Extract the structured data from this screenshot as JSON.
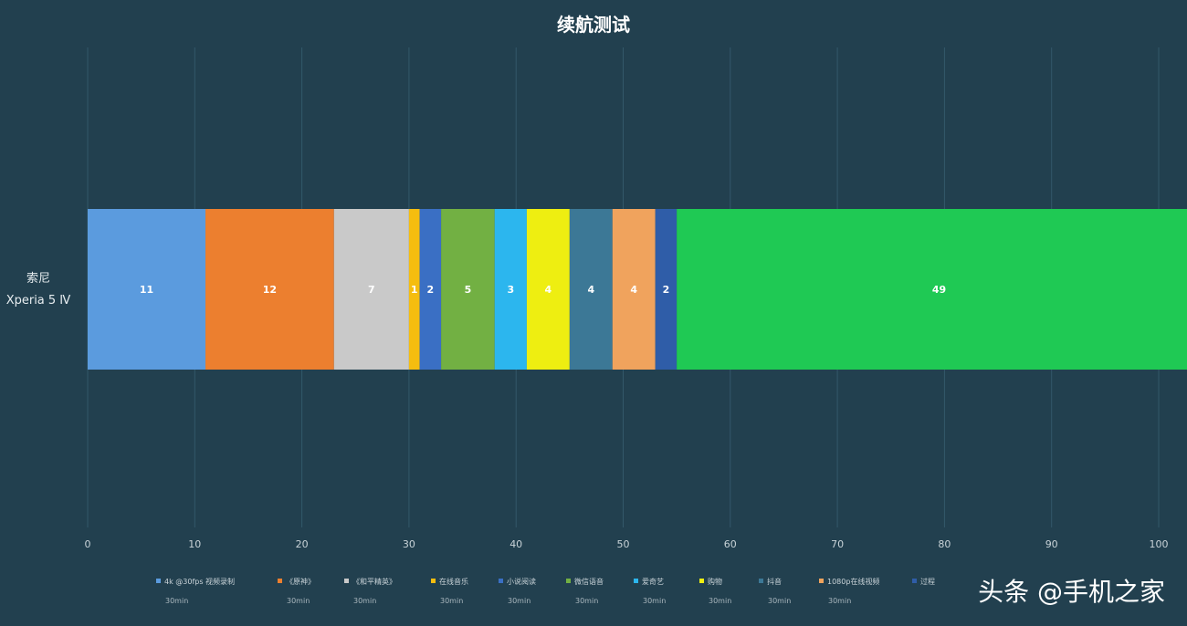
{
  "chart_data": {
    "type": "bar",
    "orientation": "horizontal",
    "stacked": true,
    "title": "续航测试",
    "categories": [
      "索尼",
      "Xperia 5 Ⅳ"
    ],
    "xlim": [
      0,
      100
    ],
    "x_ticks": [
      "0",
      "10",
      "20",
      "30",
      "40",
      "50",
      "60",
      "70",
      "80",
      "90",
      "100"
    ],
    "grid": true,
    "legend_position": "bottom",
    "series": [
      {
        "name": "4k @30fps 视频录制",
        "sub": "30min",
        "value": 11,
        "color": "#5b9bde",
        "label": "11"
      },
      {
        "name": "《原神》",
        "sub": "30min",
        "value": 12,
        "color": "#ec7f2f",
        "label": "12"
      },
      {
        "name": "《和平精英》",
        "sub": "30min",
        "value": 7,
        "color": "#c9c9c9",
        "label": "7"
      },
      {
        "name": "在线音乐",
        "sub": "30min",
        "value": 1,
        "color": "#f5bd0f",
        "label": "1"
      },
      {
        "name": "小说阅读",
        "sub": "30min",
        "value": 2,
        "color": "#3a6fc4",
        "label": "2"
      },
      {
        "name": "微信语音",
        "sub": "30min",
        "value": 5,
        "color": "#72b043",
        "label": "5"
      },
      {
        "name": "爱奇艺",
        "sub": "30min",
        "value": 3,
        "color": "#2cb6ee",
        "label": "3"
      },
      {
        "name": "购物",
        "sub": "30min",
        "value": 4,
        "color": "#eeee11",
        "label": "4"
      },
      {
        "name": "抖音",
        "sub": "30min",
        "value": 4,
        "color": "#3c7896",
        "label": "4"
      },
      {
        "name": "1080p在线视频",
        "sub": "30min",
        "value": 4,
        "color": "#f0a35d",
        "label": "4"
      },
      {
        "name": "过程",
        "sub": "",
        "value": 2,
        "color": "#2f5da8",
        "label": "2"
      },
      {
        "name": "",
        "sub": "",
        "value": 49,
        "color": "#1fc954",
        "label": "49"
      }
    ]
  },
  "watermark": "头条 @手机之家"
}
